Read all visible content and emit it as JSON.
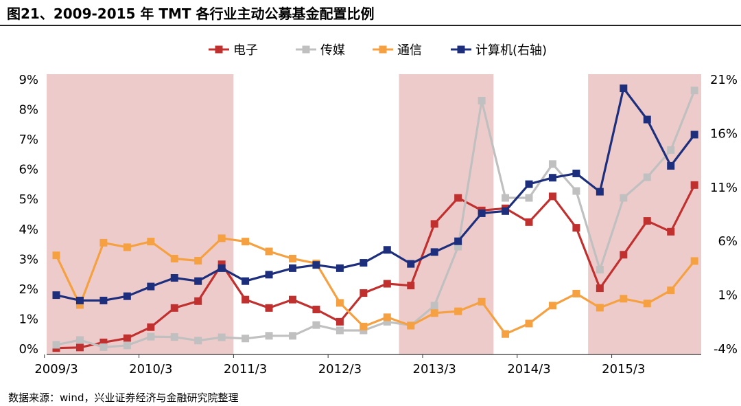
{
  "title": "图21、2009-2015 年 TMT 各行业主动公募基金配置比例",
  "source": "数据来源：wind，兴业证券经济与金融研究院整理",
  "chart_data": {
    "type": "line",
    "x": [
      "2009/3",
      "2009/6",
      "2009/9",
      "2009/12",
      "2010/3",
      "2010/6",
      "2010/9",
      "2010/12",
      "2011/3",
      "2011/6",
      "2011/9",
      "2011/12",
      "2012/3",
      "2012/6",
      "2012/9",
      "2012/12",
      "2013/3",
      "2013/6",
      "2013/9",
      "2013/12",
      "2014/3",
      "2014/6",
      "2014/9",
      "2014/12",
      "2015/3",
      "2015/6",
      "2015/9",
      "2015/12"
    ],
    "x_tick_labels": [
      "2009/3",
      "2010/3",
      "2011/3",
      "2012/3",
      "2013/3",
      "2014/3",
      "2015/3"
    ],
    "y_left": {
      "ticks": [
        "0%",
        "1%",
        "2%",
        "3%",
        "4%",
        "5%",
        "6%",
        "7%",
        "8%",
        "9%"
      ],
      "ylim": [
        0,
        9
      ]
    },
    "y_right": {
      "ticks": [
        "-4%",
        "1%",
        "6%",
        "11%",
        "16%",
        "21%"
      ],
      "ylim": [
        -4,
        21
      ]
    },
    "shaded_ranges": [
      {
        "from": "2009/3",
        "to": "2010/12"
      },
      {
        "from": "2012/12",
        "to": "2013/9"
      },
      {
        "from": "2014/12",
        "to": "2015/12"
      }
    ],
    "series": [
      {
        "name": "电子",
        "axis": "left",
        "color": "#c0302e",
        "values": [
          0.03,
          0.05,
          0.22,
          0.36,
          0.73,
          1.37,
          1.6,
          2.83,
          1.65,
          1.37,
          1.65,
          1.32,
          0.91,
          1.87,
          2.18,
          2.12,
          4.18,
          5.05,
          4.63,
          4.7,
          4.24,
          5.1,
          4.05,
          2.03,
          3.15,
          4.28,
          3.92,
          5.48
        ]
      },
      {
        "name": "传媒",
        "axis": "left",
        "color": "#c0c0c0",
        "values": [
          0.14,
          0.3,
          0.06,
          0.12,
          0.41,
          0.4,
          0.28,
          0.39,
          0.35,
          0.44,
          0.44,
          0.8,
          0.62,
          0.62,
          0.91,
          0.79,
          1.45,
          3.42,
          8.3,
          5.05,
          5.05,
          6.18,
          5.28,
          2.65,
          5.05,
          5.74,
          6.65,
          8.64
        ]
      },
      {
        "name": "通信",
        "axis": "left",
        "color": "#f5a142",
        "values": [
          3.13,
          1.47,
          3.55,
          3.4,
          3.59,
          3.02,
          2.95,
          3.7,
          3.59,
          3.26,
          3.02,
          2.86,
          1.54,
          0.75,
          1.06,
          0.78,
          1.2,
          1.26,
          1.58,
          0.5,
          0.85,
          1.45,
          1.85,
          1.38,
          1.68,
          1.52,
          1.96,
          2.94
        ]
      },
      {
        "name": "计算机(右轴)",
        "axis": "right",
        "color": "#1d2f7c",
        "values": [
          1.0,
          0.5,
          0.5,
          0.9,
          1.8,
          2.6,
          2.3,
          3.5,
          2.3,
          2.9,
          3.5,
          3.8,
          3.5,
          4.0,
          5.2,
          3.9,
          5.0,
          6.0,
          8.6,
          8.8,
          11.3,
          11.9,
          12.3,
          10.6,
          20.2,
          17.3,
          13.0,
          15.9
        ]
      }
    ]
  }
}
